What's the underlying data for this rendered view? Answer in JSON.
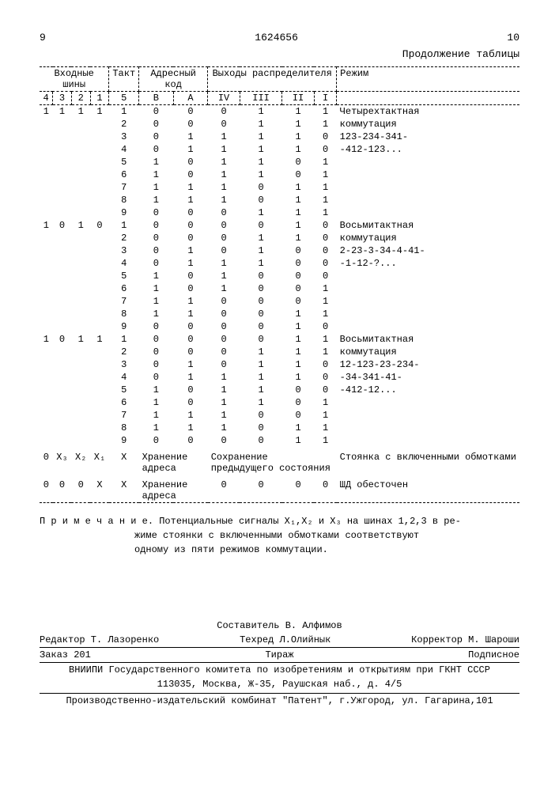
{
  "header": {
    "page_left": "9",
    "doc_number": "1624656",
    "page_right": "10",
    "continuation": "Продолжение таблицы"
  },
  "table": {
    "header_groups": {
      "inputs": "Входные шины",
      "tact": "Такт",
      "address": "Адресный код",
      "outputs": "Выходы распределителя",
      "mode": "Режим"
    },
    "sub_headers": {
      "c4": "4",
      "c3": "3",
      "c2": "2",
      "c1": "1",
      "c5": "5",
      "cB": "B",
      "cA": "A",
      "cIV": "IV",
      "cIII": "III",
      "cII": "II",
      "cI": "I"
    },
    "rows": [
      {
        "c4": "1",
        "c3": "1",
        "c2": "1",
        "c1": "1",
        "c5": "1",
        "cB": "0",
        "cA": "0",
        "cIV": "0",
        "cIII": "1",
        "cII": "1",
        "cI": "1",
        "mode": "Четырехтактная"
      },
      {
        "c4": "",
        "c3": "",
        "c2": "",
        "c1": "",
        "c5": "2",
        "cB": "0",
        "cA": "0",
        "cIV": "0",
        "cIII": "1",
        "cII": "1",
        "cI": "1",
        "mode": "коммутация"
      },
      {
        "c4": "",
        "c3": "",
        "c2": "",
        "c1": "",
        "c5": "3",
        "cB": "0",
        "cA": "1",
        "cIV": "1",
        "cIII": "1",
        "cII": "1",
        "cI": "0",
        "mode": "123-234-341-"
      },
      {
        "c4": "",
        "c3": "",
        "c2": "",
        "c1": "",
        "c5": "4",
        "cB": "0",
        "cA": "1",
        "cIV": "1",
        "cIII": "1",
        "cII": "1",
        "cI": "0",
        "mode": "-412-123..."
      },
      {
        "c4": "",
        "c3": "",
        "c2": "",
        "c1": "",
        "c5": "5",
        "cB": "1",
        "cA": "0",
        "cIV": "1",
        "cIII": "1",
        "cII": "0",
        "cI": "1",
        "mode": ""
      },
      {
        "c4": "",
        "c3": "",
        "c2": "",
        "c1": "",
        "c5": "6",
        "cB": "1",
        "cA": "0",
        "cIV": "1",
        "cIII": "1",
        "cII": "0",
        "cI": "1",
        "mode": ""
      },
      {
        "c4": "",
        "c3": "",
        "c2": "",
        "c1": "",
        "c5": "7",
        "cB": "1",
        "cA": "1",
        "cIV": "1",
        "cIII": "0",
        "cII": "1",
        "cI": "1",
        "mode": ""
      },
      {
        "c4": "",
        "c3": "",
        "c2": "",
        "c1": "",
        "c5": "8",
        "cB": "1",
        "cA": "1",
        "cIV": "1",
        "cIII": "0",
        "cII": "1",
        "cI": "1",
        "mode": ""
      },
      {
        "c4": "",
        "c3": "",
        "c2": "",
        "c1": "",
        "c5": "9",
        "cB": "0",
        "cA": "0",
        "cIV": "0",
        "cIII": "1",
        "cII": "1",
        "cI": "1",
        "mode": ""
      },
      {
        "c4": "1",
        "c3": "0",
        "c2": "1",
        "c1": "0",
        "c5": "1",
        "cB": "0",
        "cA": "0",
        "cIV": "0",
        "cIII": "0",
        "cII": "1",
        "cI": "0",
        "mode": "Восьмитактная"
      },
      {
        "c4": "",
        "c3": "",
        "c2": "",
        "c1": "",
        "c5": "2",
        "cB": "0",
        "cA": "0",
        "cIV": "0",
        "cIII": "1",
        "cII": "1",
        "cI": "0",
        "mode": "коммутация"
      },
      {
        "c4": "",
        "c3": "",
        "c2": "",
        "c1": "",
        "c5": "3",
        "cB": "0",
        "cA": "1",
        "cIV": "0",
        "cIII": "1",
        "cII": "0",
        "cI": "0",
        "mode": "2-23-3-34-4-41-"
      },
      {
        "c4": "",
        "c3": "",
        "c2": "",
        "c1": "",
        "c5": "4",
        "cB": "0",
        "cA": "1",
        "cIV": "1",
        "cIII": "1",
        "cII": "0",
        "cI": "0",
        "mode": "-1-12-?..."
      },
      {
        "c4": "",
        "c3": "",
        "c2": "",
        "c1": "",
        "c5": "5",
        "cB": "1",
        "cA": "0",
        "cIV": "1",
        "cIII": "0",
        "cII": "0",
        "cI": "0",
        "mode": ""
      },
      {
        "c4": "",
        "c3": "",
        "c2": "",
        "c1": "",
        "c5": "6",
        "cB": "1",
        "cA": "0",
        "cIV": "1",
        "cIII": "0",
        "cII": "0",
        "cI": "1",
        "mode": ""
      },
      {
        "c4": "",
        "c3": "",
        "c2": "",
        "c1": "",
        "c5": "7",
        "cB": "1",
        "cA": "1",
        "cIV": "0",
        "cIII": "0",
        "cII": "0",
        "cI": "1",
        "mode": ""
      },
      {
        "c4": "",
        "c3": "",
        "c2": "",
        "c1": "",
        "c5": "8",
        "cB": "1",
        "cA": "1",
        "cIV": "0",
        "cIII": "0",
        "cII": "1",
        "cI": "1",
        "mode": ""
      },
      {
        "c4": "",
        "c3": "",
        "c2": "",
        "c1": "",
        "c5": "9",
        "cB": "0",
        "cA": "0",
        "cIV": "0",
        "cIII": "0",
        "cII": "1",
        "cI": "0",
        "mode": ""
      },
      {
        "c4": "1",
        "c3": "0",
        "c2": "1",
        "c1": "1",
        "c5": "1",
        "cB": "0",
        "cA": "0",
        "cIV": "0",
        "cIII": "0",
        "cII": "1",
        "cI": "1",
        "mode": "Восьмитактная"
      },
      {
        "c4": "",
        "c3": "",
        "c2": "",
        "c1": "",
        "c5": "2",
        "cB": "0",
        "cA": "0",
        "cIV": "0",
        "cIII": "1",
        "cII": "1",
        "cI": "1",
        "mode": "коммутация"
      },
      {
        "c4": "",
        "c3": "",
        "c2": "",
        "c1": "",
        "c5": "3",
        "cB": "0",
        "cA": "1",
        "cIV": "0",
        "cIII": "1",
        "cII": "1",
        "cI": "0",
        "mode": "12-123-23-234-"
      },
      {
        "c4": "",
        "c3": "",
        "c2": "",
        "c1": "",
        "c5": "4",
        "cB": "0",
        "cA": "1",
        "cIV": "1",
        "cIII": "1",
        "cII": "1",
        "cI": "0",
        "mode": "-34-341-41-"
      },
      {
        "c4": "",
        "c3": "",
        "c2": "",
        "c1": "",
        "c5": "5",
        "cB": "1",
        "cA": "0",
        "cIV": "1",
        "cIII": "1",
        "cII": "0",
        "cI": "0",
        "mode": "-412-12..."
      },
      {
        "c4": "",
        "c3": "",
        "c2": "",
        "c1": "",
        "c5": "6",
        "cB": "1",
        "cA": "0",
        "cIV": "1",
        "cIII": "1",
        "cII": "0",
        "cI": "1",
        "mode": ""
      },
      {
        "c4": "",
        "c3": "",
        "c2": "",
        "c1": "",
        "c5": "7",
        "cB": "1",
        "cA": "1",
        "cIV": "1",
        "cIII": "0",
        "cII": "0",
        "cI": "1",
        "mode": ""
      },
      {
        "c4": "",
        "c3": "",
        "c2": "",
        "c1": "",
        "c5": "8",
        "cB": "1",
        "cA": "1",
        "cIV": "1",
        "cIII": "0",
        "cII": "1",
        "cI": "1",
        "mode": ""
      },
      {
        "c4": "",
        "c3": "",
        "c2": "",
        "c1": "",
        "c5": "9",
        "cB": "0",
        "cA": "0",
        "cIV": "0",
        "cIII": "0",
        "cII": "1",
        "cI": "1",
        "mode": ""
      }
    ],
    "special_rows": [
      {
        "c4": "0",
        "c3": "X₃",
        "c2": "X₂",
        "c1": "X₁",
        "c5": "X",
        "addr_text": "Хранение адреса",
        "out_text": "Сохранение предыдущего состояния",
        "mode": "Стоянка с включенными обмотками"
      },
      {
        "c4": "0",
        "c3": "0",
        "c2": "0",
        "c1": "X",
        "c5": "X",
        "addr_text": "Хранение адреса",
        "out_text_cells": {
          "cIV": "0",
          "cIII": "0",
          "cII": "0",
          "cI": "0"
        },
        "mode": "ШД обесточен"
      }
    ]
  },
  "note": {
    "label": "П р и м е ч а н и е.",
    "line1": "Потенциальные сигналы X₁,X₂ и X₃ на шинах 1,2,3 в ре-",
    "line2": "жиме стоянки с включенными обмотками соответствуют",
    "line3": "одному из пяти режимов коммутации."
  },
  "footer": {
    "composer": "Составитель В. Алфимов",
    "editor": "Редактор Т. Лазоренко",
    "tehred": "Техред Л.Олийнык",
    "corrector": "Корректор М. Шароши",
    "order": "Заказ 201",
    "tirazh": "Тираж",
    "subscription": "Подписное",
    "org1": "ВНИИПИ Государственного комитета по изобретениям и открытиям при ГКНТ СССР",
    "addr1": "113035, Москва, Ж-35, Раушская наб., д. 4/5",
    "org2": "Производственно-издательский комбинат \"Патент\", г.Ужгород, ул. Гагарина,101"
  }
}
